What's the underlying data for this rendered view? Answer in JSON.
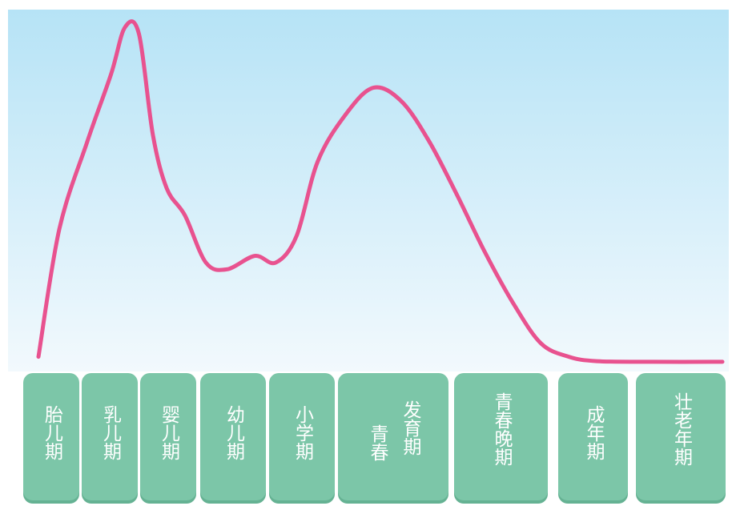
{
  "chart_data": {
    "type": "line",
    "title": "",
    "xlabel": "",
    "ylabel": "",
    "colors": {
      "line": "#e8528f",
      "background_top": "#b6e3f6",
      "background_bottom": "#f2f9fd",
      "stage_box": "#7cc6a8",
      "stage_text": "#ffffff"
    },
    "grid": false,
    "legend": "none",
    "ylim": [
      0,
      100
    ],
    "categories": [
      "胎儿期",
      "乳儿期",
      "婴儿期",
      "幼儿期",
      "小学期",
      "青春发育期",
      "青春晚期",
      "成年期",
      "壮老年期"
    ],
    "series": [
      {
        "values": [
          2,
          60,
          100,
          46,
          28,
          80,
          44,
          0.5,
          0.5
        ],
        "curve": [
          [
            0,
            2
          ],
          [
            1.5,
            40
          ],
          [
            3.5,
            66
          ],
          [
            5.2,
            86
          ],
          [
            6.2,
            100
          ],
          [
            7.2,
            98
          ],
          [
            8.2,
            68
          ],
          [
            9.2,
            52
          ],
          [
            10.5,
            44
          ],
          [
            12,
            30
          ],
          [
            13.5,
            28
          ],
          [
            15.5,
            32
          ],
          [
            17,
            30
          ],
          [
            18.5,
            38
          ],
          [
            20,
            60
          ],
          [
            22,
            74
          ],
          [
            24,
            82
          ],
          [
            26,
            78
          ],
          [
            28,
            66
          ],
          [
            30,
            50
          ],
          [
            32,
            33
          ],
          [
            34,
            18
          ],
          [
            36,
            6
          ],
          [
            38,
            2
          ],
          [
            40,
            0.7
          ],
          [
            44,
            0.5
          ],
          [
            49,
            0.5
          ]
        ]
      }
    ],
    "x_domain": [
      0,
      49
    ]
  },
  "stages": [
    {
      "id": "fetal",
      "lines": [
        "胎儿期"
      ]
    },
    {
      "id": "neonatal",
      "lines": [
        "乳儿期"
      ]
    },
    {
      "id": "infant",
      "lines": [
        "婴儿期"
      ]
    },
    {
      "id": "toddler",
      "lines": [
        "幼儿期"
      ]
    },
    {
      "id": "primary-school",
      "lines": [
        "小学期"
      ]
    },
    {
      "id": "puberty",
      "lines": [
        "发育期",
        "青春"
      ]
    },
    {
      "id": "late-adolescence",
      "lines": [
        "青春晚期"
      ]
    },
    {
      "id": "adult",
      "lines": [
        "成年期"
      ]
    },
    {
      "id": "elderly",
      "lines": [
        "壮老年期"
      ]
    }
  ]
}
